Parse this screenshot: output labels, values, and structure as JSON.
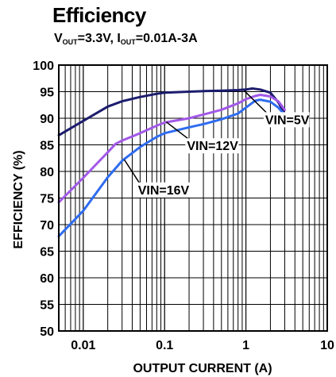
{
  "chart_data": {
    "type": "line",
    "title": "Efficiency",
    "subtitle": {
      "parts": [
        {
          "text": "V"
        },
        {
          "sub": "OUT"
        },
        {
          "text": "=3.3V, I"
        },
        {
          "sub": "OUT"
        },
        {
          "text": "=0.01A-3A"
        }
      ]
    },
    "xlabel": "OUTPUT CURRENT (A)",
    "ylabel": "EFFICIENCY (%)",
    "x_scale": "log",
    "xlim": [
      0.005,
      10
    ],
    "ylim": [
      50,
      100
    ],
    "x_ticks": [
      {
        "value": 0.01,
        "label": "0.01"
      },
      {
        "value": 0.1,
        "label": "0.1"
      },
      {
        "value": 1,
        "label": "1"
      },
      {
        "value": 10,
        "label": "10"
      }
    ],
    "y_ticks": [
      50,
      55,
      60,
      65,
      70,
      75,
      80,
      85,
      90,
      95,
      100
    ],
    "grid": true,
    "series": [
      {
        "name": "VIN=5V",
        "color": "#1c1c6e",
        "x": [
          0.005,
          0.01,
          0.02,
          0.03,
          0.05,
          0.08,
          0.1,
          0.2,
          0.3,
          0.5,
          0.8,
          1.0,
          1.2,
          1.5,
          2.0,
          2.5,
          3.0
        ],
        "y": [
          86.8,
          89.5,
          92.2,
          93.2,
          94.0,
          94.6,
          94.8,
          95.0,
          95.1,
          95.2,
          95.3,
          95.4,
          95.6,
          95.4,
          94.8,
          93.0,
          90.8
        ]
      },
      {
        "name": "VIN=12V",
        "color": "#a259e8",
        "x": [
          0.005,
          0.01,
          0.02,
          0.025,
          0.03,
          0.05,
          0.08,
          0.1,
          0.2,
          0.3,
          0.5,
          0.8,
          1.0,
          1.3,
          1.5,
          2.0,
          2.5,
          3.0
        ],
        "y": [
          74.2,
          78.8,
          83.6,
          85.2,
          85.8,
          87.2,
          88.6,
          89.2,
          90.0,
          90.7,
          91.6,
          92.8,
          93.6,
          94.2,
          94.4,
          94.1,
          93.2,
          91.6
        ]
      },
      {
        "name": "VIN=16V",
        "color": "#2f6cf0",
        "x": [
          0.005,
          0.01,
          0.02,
          0.03,
          0.05,
          0.08,
          0.1,
          0.2,
          0.3,
          0.5,
          0.8,
          1.0,
          1.3,
          1.5,
          2.0,
          2.5,
          3.0
        ],
        "y": [
          67.8,
          72.6,
          78.9,
          82.0,
          84.6,
          86.5,
          87.2,
          88.3,
          88.9,
          89.8,
          90.9,
          92.0,
          93.3,
          93.5,
          93.1,
          92.0,
          90.6
        ]
      }
    ],
    "annotations": [
      {
        "text": "VIN=5V",
        "series": "VIN=5V",
        "point": [
          0.95,
          95.2
        ],
        "label_at": [
          1.65,
          88.9
        ]
      },
      {
        "text": "VIN=12V",
        "series": "VIN=12V",
        "point": [
          0.105,
          89.3
        ],
        "label_at": [
          0.18,
          84.0
        ]
      },
      {
        "text": "VIN=16V",
        "series": "VIN=16V",
        "point": [
          0.032,
          82.2
        ],
        "label_at": [
          0.045,
          75.7
        ]
      }
    ]
  }
}
